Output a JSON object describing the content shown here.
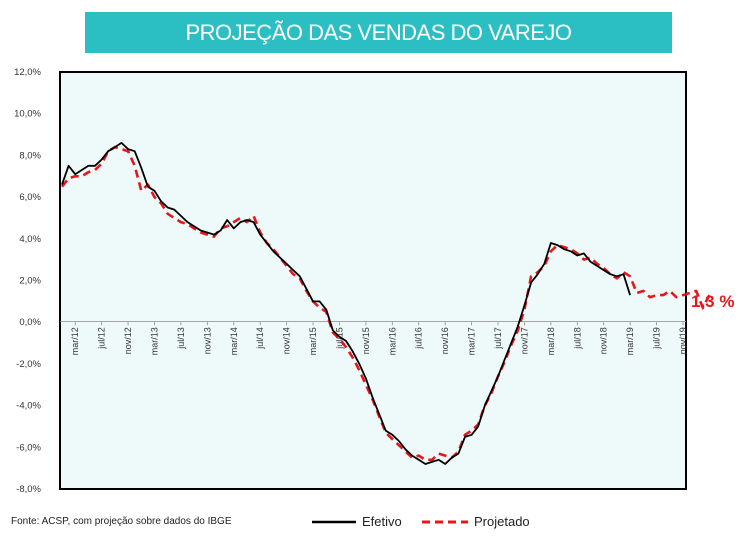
{
  "title": "PROJEÇÃO DAS VENDAS DO VAREJO",
  "source": "Fonte: ACSP, com projeção sobre dados do IBGE",
  "annotation": "1,3 %",
  "colors": {
    "title_bg": "#2bbfc3",
    "efetivo": "#000000",
    "projetado": "#e8161b",
    "plot_bg": "#eef9f9"
  },
  "chart_data": {
    "type": "line",
    "y_tick_labels": [
      "12,0%",
      "10,0%",
      "8,0%",
      "6,0%",
      "4,0%",
      "2,0%",
      "0,0%",
      "-2,0%",
      "-4,0%",
      "-6,0%",
      "-8,0%"
    ],
    "ylim": [
      -8,
      12
    ],
    "x_tick_labels": [
      "mar/12",
      "jul/12",
      "nov/12",
      "mar/13",
      "jul/13",
      "nov/13",
      "mar/14",
      "jul/14",
      "nov/14",
      "mar/15",
      "jul/15",
      "nov/15",
      "mar/16",
      "jul/16",
      "nov/16",
      "mar/17",
      "jul/17",
      "nov/17",
      "mar/18",
      "jul/18",
      "nov/18",
      "mar/19",
      "jul/19",
      "nov/19"
    ],
    "x_start": "jan/12",
    "grid": false,
    "legend_position": "bottom",
    "series": [
      {
        "name": "Efetivo",
        "style": "solid",
        "values": [
          6.6,
          7.5,
          7.1,
          7.3,
          7.5,
          7.5,
          7.8,
          8.2,
          8.4,
          8.6,
          8.3,
          8.2,
          7.4,
          6.5,
          6.3,
          5.8,
          5.5,
          5.4,
          5.1,
          4.8,
          4.6,
          4.4,
          4.3,
          4.2,
          4.4,
          4.9,
          4.5,
          4.8,
          4.9,
          4.8,
          4.2,
          3.8,
          3.4,
          3.1,
          2.8,
          2.5,
          2.2,
          1.6,
          1.0,
          1.0,
          0.6,
          -0.4,
          -0.7,
          -0.9,
          -1.4,
          -2.0,
          -2.7,
          -3.6,
          -4.4,
          -5.2,
          -5.4,
          -5.7,
          -6.1,
          -6.4,
          -6.6,
          -6.8,
          -6.7,
          -6.6,
          -6.8,
          -6.5,
          -6.3,
          -5.5,
          -5.4,
          -5.0,
          -4.0,
          -3.3,
          -2.6,
          -1.8,
          -1.0,
          -0.2,
          0.8,
          1.9,
          2.3,
          2.8,
          3.8,
          3.7,
          3.5,
          3.4,
          3.2,
          3.3,
          2.9,
          2.7,
          2.5,
          2.3,
          2.2,
          2.3,
          1.3
        ],
        "projected": false
      },
      {
        "name": "Projetado",
        "style": "dashed",
        "values": [
          6.5,
          6.9,
          7.0,
          7.0,
          7.2,
          7.3,
          7.6,
          8.2,
          8.4,
          8.3,
          8.2,
          7.5,
          6.3,
          6.6,
          6.0,
          5.7,
          5.2,
          5.0,
          4.8,
          4.7,
          4.5,
          4.3,
          4.2,
          4.1,
          4.5,
          4.6,
          4.8,
          5.0,
          4.8,
          5.1,
          4.3,
          3.8,
          3.5,
          3.1,
          2.7,
          2.3,
          2.1,
          1.5,
          1.0,
          0.7,
          0.5,
          -0.5,
          -0.8,
          -1.2,
          -1.7,
          -2.3,
          -3.0,
          -3.7,
          -4.5,
          -5.3,
          -5.6,
          -5.9,
          -6.2,
          -6.5,
          -6.4,
          -6.6,
          -6.6,
          -6.3,
          -6.4,
          -6.5,
          -6.2,
          -5.4,
          -5.2,
          -4.9,
          -4.0,
          -3.4,
          -2.6,
          -1.9,
          -1.1,
          -0.4,
          0.6,
          2.2,
          2.4,
          2.7,
          3.4,
          3.7,
          3.6,
          3.5,
          3.3,
          3.0,
          3.1,
          2.8,
          2.6,
          2.3,
          2.1,
          2.4,
          2.2,
          1.4,
          1.5,
          1.2,
          1.3,
          1.3,
          1.5,
          1.2,
          1.3,
          1.4,
          1.5,
          0.7,
          1.3
        ],
        "projected": true
      }
    ]
  }
}
